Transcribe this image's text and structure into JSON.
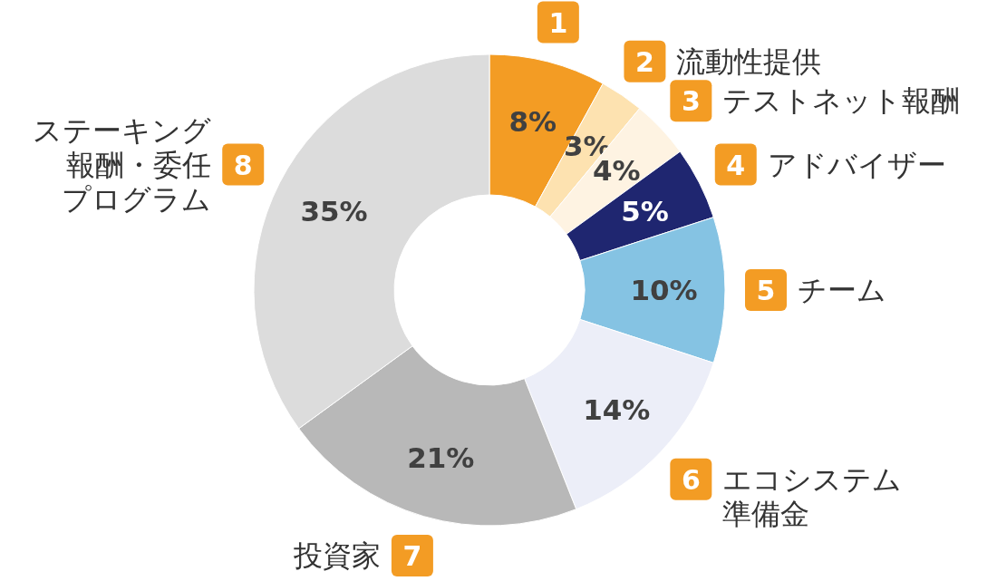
{
  "chart_data": {
    "type": "donut",
    "categories": [
      null,
      "流動性提供",
      "テストネット報酬",
      "アドバイザー",
      "チーム",
      "エコシステム準備金",
      "投資家",
      "ステーキング報酬・委任プログラム"
    ],
    "values": [
      8,
      3,
      4,
      5,
      10,
      14,
      21,
      35
    ],
    "value_labels": [
      "8%",
      "3%",
      "4%",
      "5%",
      "10%",
      "14%",
      "21%",
      "35%"
    ],
    "colors": [
      "#f39c24",
      "#fde2b0",
      "#fef3e2",
      "#1f2670",
      "#85c3e3",
      "#eceef8",
      "#b8b8b8",
      "#dcdcdc"
    ],
    "annotations": [
      "1",
      "2",
      "3",
      "4",
      "5",
      "6",
      "7",
      "8"
    ]
  }
}
